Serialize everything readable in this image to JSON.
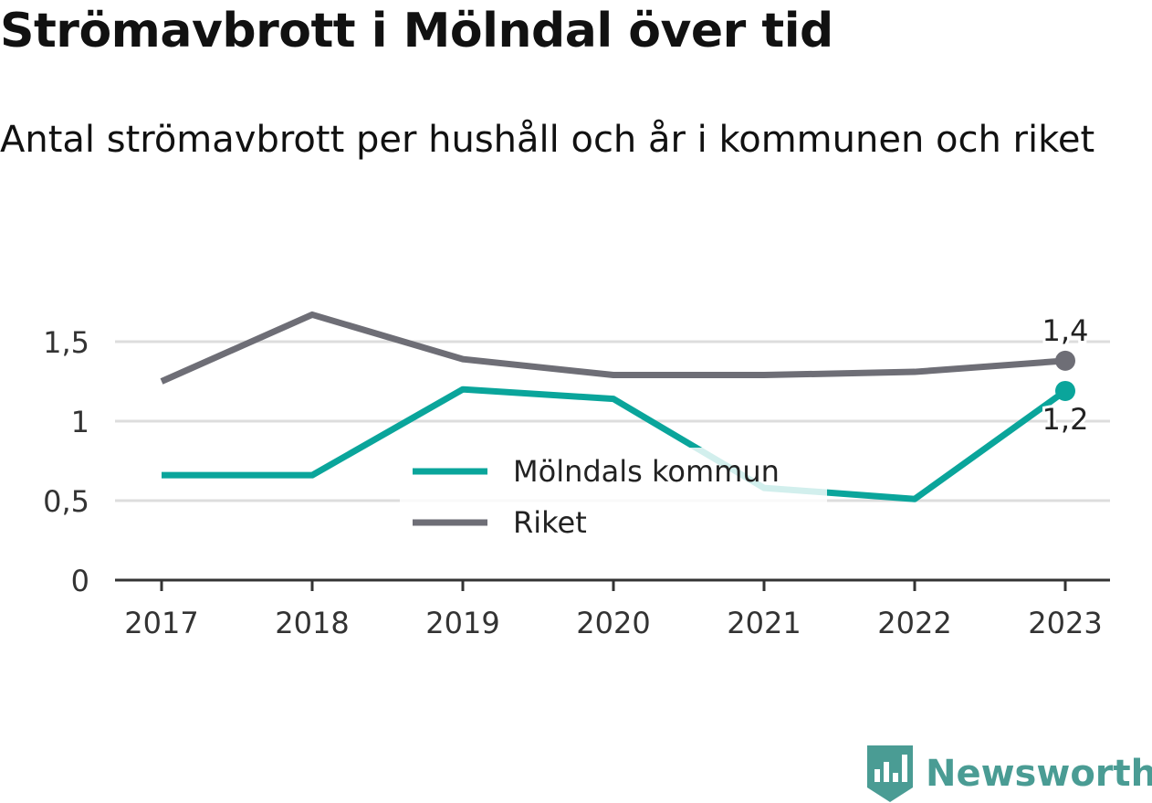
{
  "title": "Strömavbrott i Mölndal över tid",
  "subtitle": "Antal strömavbrott per hushåll och år i kommunen och riket",
  "brand": "Newsworthy",
  "chart_data": {
    "type": "line",
    "x": [
      "2017",
      "2018",
      "2019",
      "2020",
      "2021",
      "2022",
      "2023"
    ],
    "ylim": [
      0,
      1.75
    ],
    "yticks": [
      0,
      0.5,
      1,
      1.5
    ],
    "ytick_labels": [
      "0",
      "0,5",
      "1",
      "1,5"
    ],
    "grid": true,
    "legend_position": "center",
    "series": [
      {
        "name": "Mölndals kommun",
        "color": "#0aa59b",
        "values": [
          0.66,
          0.66,
          1.2,
          1.14,
          0.58,
          0.51,
          1.19
        ],
        "end_label": "1,2"
      },
      {
        "name": "Riket",
        "color": "#6e6e76",
        "values": [
          1.25,
          1.67,
          1.39,
          1.29,
          1.29,
          1.31,
          1.38
        ],
        "end_label": "1,4"
      }
    ]
  }
}
